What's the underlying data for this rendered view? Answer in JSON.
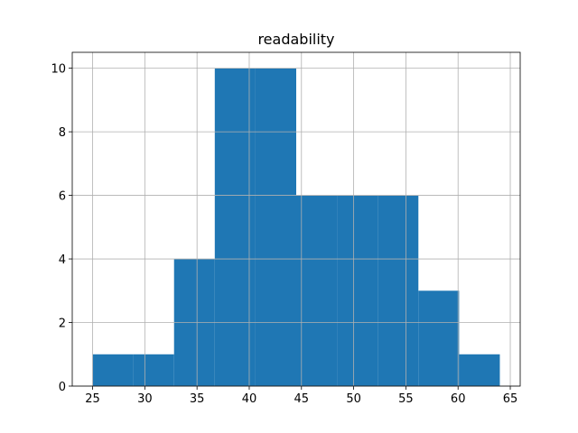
{
  "chart_data": {
    "type": "histogram",
    "title": "readability",
    "bins": [
      25,
      28.9,
      32.8,
      36.7,
      40.6,
      44.5,
      48.4,
      52.3,
      56.2,
      60.1,
      64
    ],
    "values": [
      1,
      1,
      4,
      10,
      10,
      6,
      6,
      6,
      3,
      1
    ],
    "color": "#1f77b4",
    "xlim": [
      23.05,
      65.95
    ],
    "xticks": [
      25,
      30,
      35,
      40,
      45,
      50,
      55,
      60,
      65
    ],
    "ylim": [
      0,
      10.5
    ],
    "yticks": [
      0,
      2,
      4,
      6,
      8,
      10
    ],
    "grid": true
  }
}
